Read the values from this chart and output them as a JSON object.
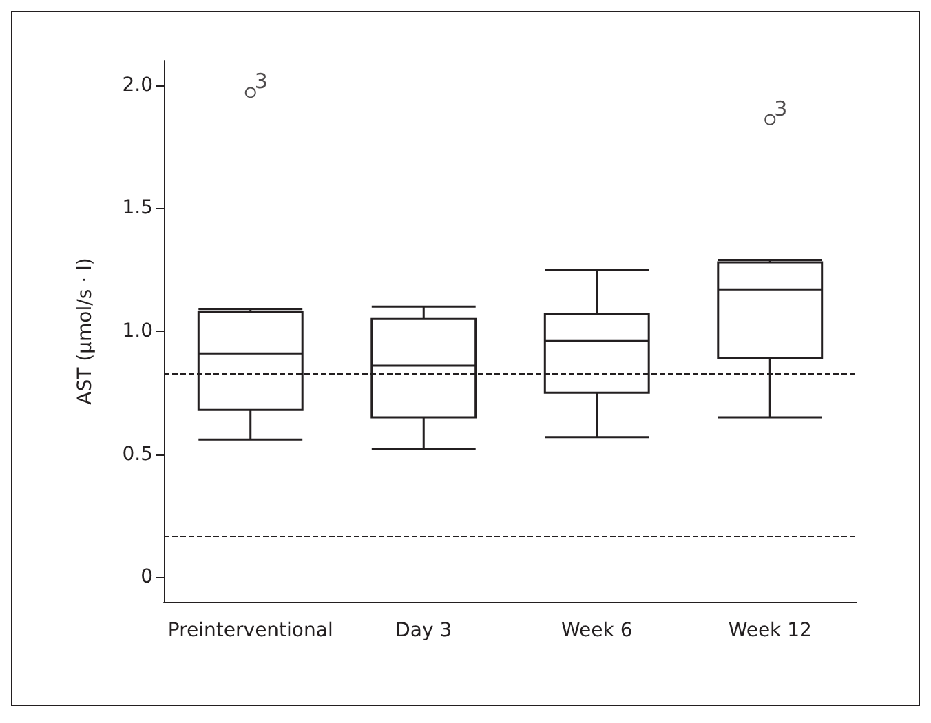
{
  "chart_data": {
    "type": "box",
    "ylabel": "AST (μmol/s · l)",
    "categories": [
      "Preinterventional",
      "Day 3",
      "Week 6",
      "Week 12"
    ],
    "boxes": [
      {
        "low": 0.56,
        "q1": 0.68,
        "median": 0.91,
        "q3": 1.08,
        "high": 1.09,
        "outliers": [
          1.97
        ]
      },
      {
        "low": 0.52,
        "q1": 0.65,
        "median": 0.86,
        "q3": 1.05,
        "high": 1.1
      },
      {
        "low": 0.57,
        "q1": 0.75,
        "median": 0.96,
        "q3": 1.07,
        "high": 1.25
      },
      {
        "low": 0.65,
        "q1": 0.89,
        "median": 1.17,
        "q3": 1.28,
        "high": 1.29,
        "outliers": [
          1.86
        ]
      }
    ],
    "color": "#231f20",
    "ylim": [
      -0.1,
      2.1
    ],
    "yticks": [
      0,
      0.5,
      {
        "value": 1,
        "label": "1.0"
      },
      1.5,
      {
        "value": 2,
        "label": "2.0"
      }
    ],
    "ref_lines": [
      {
        "axis": "y",
        "value": 0.83,
        "label": null,
        "line_style": "dashed"
      },
      {
        "axis": "y",
        "value": 0.17,
        "label": null,
        "line_style": "dashed"
      }
    ],
    "annotations": [
      "3",
      "3"
    ]
  }
}
